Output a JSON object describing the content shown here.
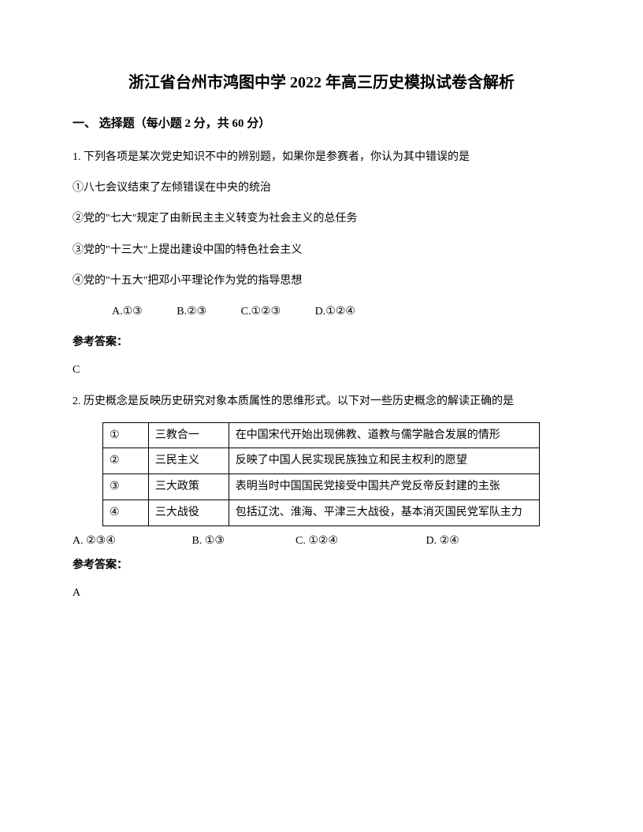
{
  "title": "浙江省台州市鸿图中学 2022 年高三历史模拟试卷含解析",
  "section": "一、 选择题（每小题 2 分，共 60 分）",
  "q1": {
    "stem": "1. 下列各项是某次党史知识不中的辨别题，如果你是参赛者，你认为其中错误的是",
    "item1": "①八七会议结束了左倾错误在中央的统治",
    "item2": "②党的\"七大\"规定了由新民主主义转变为社会主义的总任务",
    "item3": "③党的\"十三大\"上提出建设中国的特色社会主义",
    "item4": "④党的\"十五大\"把邓小平理论作为党的指导思想",
    "optA": "A.①③",
    "optB": "B.②③",
    "optC": "C.①②③",
    "optD": "D.①②④",
    "answerLabel": "参考答案：",
    "answer": "C"
  },
  "q2": {
    "stem": "2. 历史概念是反映历史研究对象本质属性的思维形式。以下对一些历史概念的解读正确的是",
    "table": {
      "rows": [
        {
          "n": "①",
          "term": "三教合一",
          "desc": "在中国宋代开始出现佛教、道教与儒学融合发展的情形"
        },
        {
          "n": "②",
          "term": "三民主义",
          "desc": "反映了中国人民实现民族独立和民主权利的愿望"
        },
        {
          "n": "③",
          "term": "三大政策",
          "desc": "表明当时中国国民党接受中国共产党反帝反封建的主张"
        },
        {
          "n": "④",
          "term": "三大战役",
          "desc": "包括辽沈、淮海、平津三大战役，基本消灭国民党军队主力"
        }
      ]
    },
    "optA": "A. ②③④",
    "optB": "B. ①③",
    "optC": "C. ①②④",
    "optD": "D. ②④",
    "answerLabel": "参考答案：",
    "answer": "A"
  }
}
